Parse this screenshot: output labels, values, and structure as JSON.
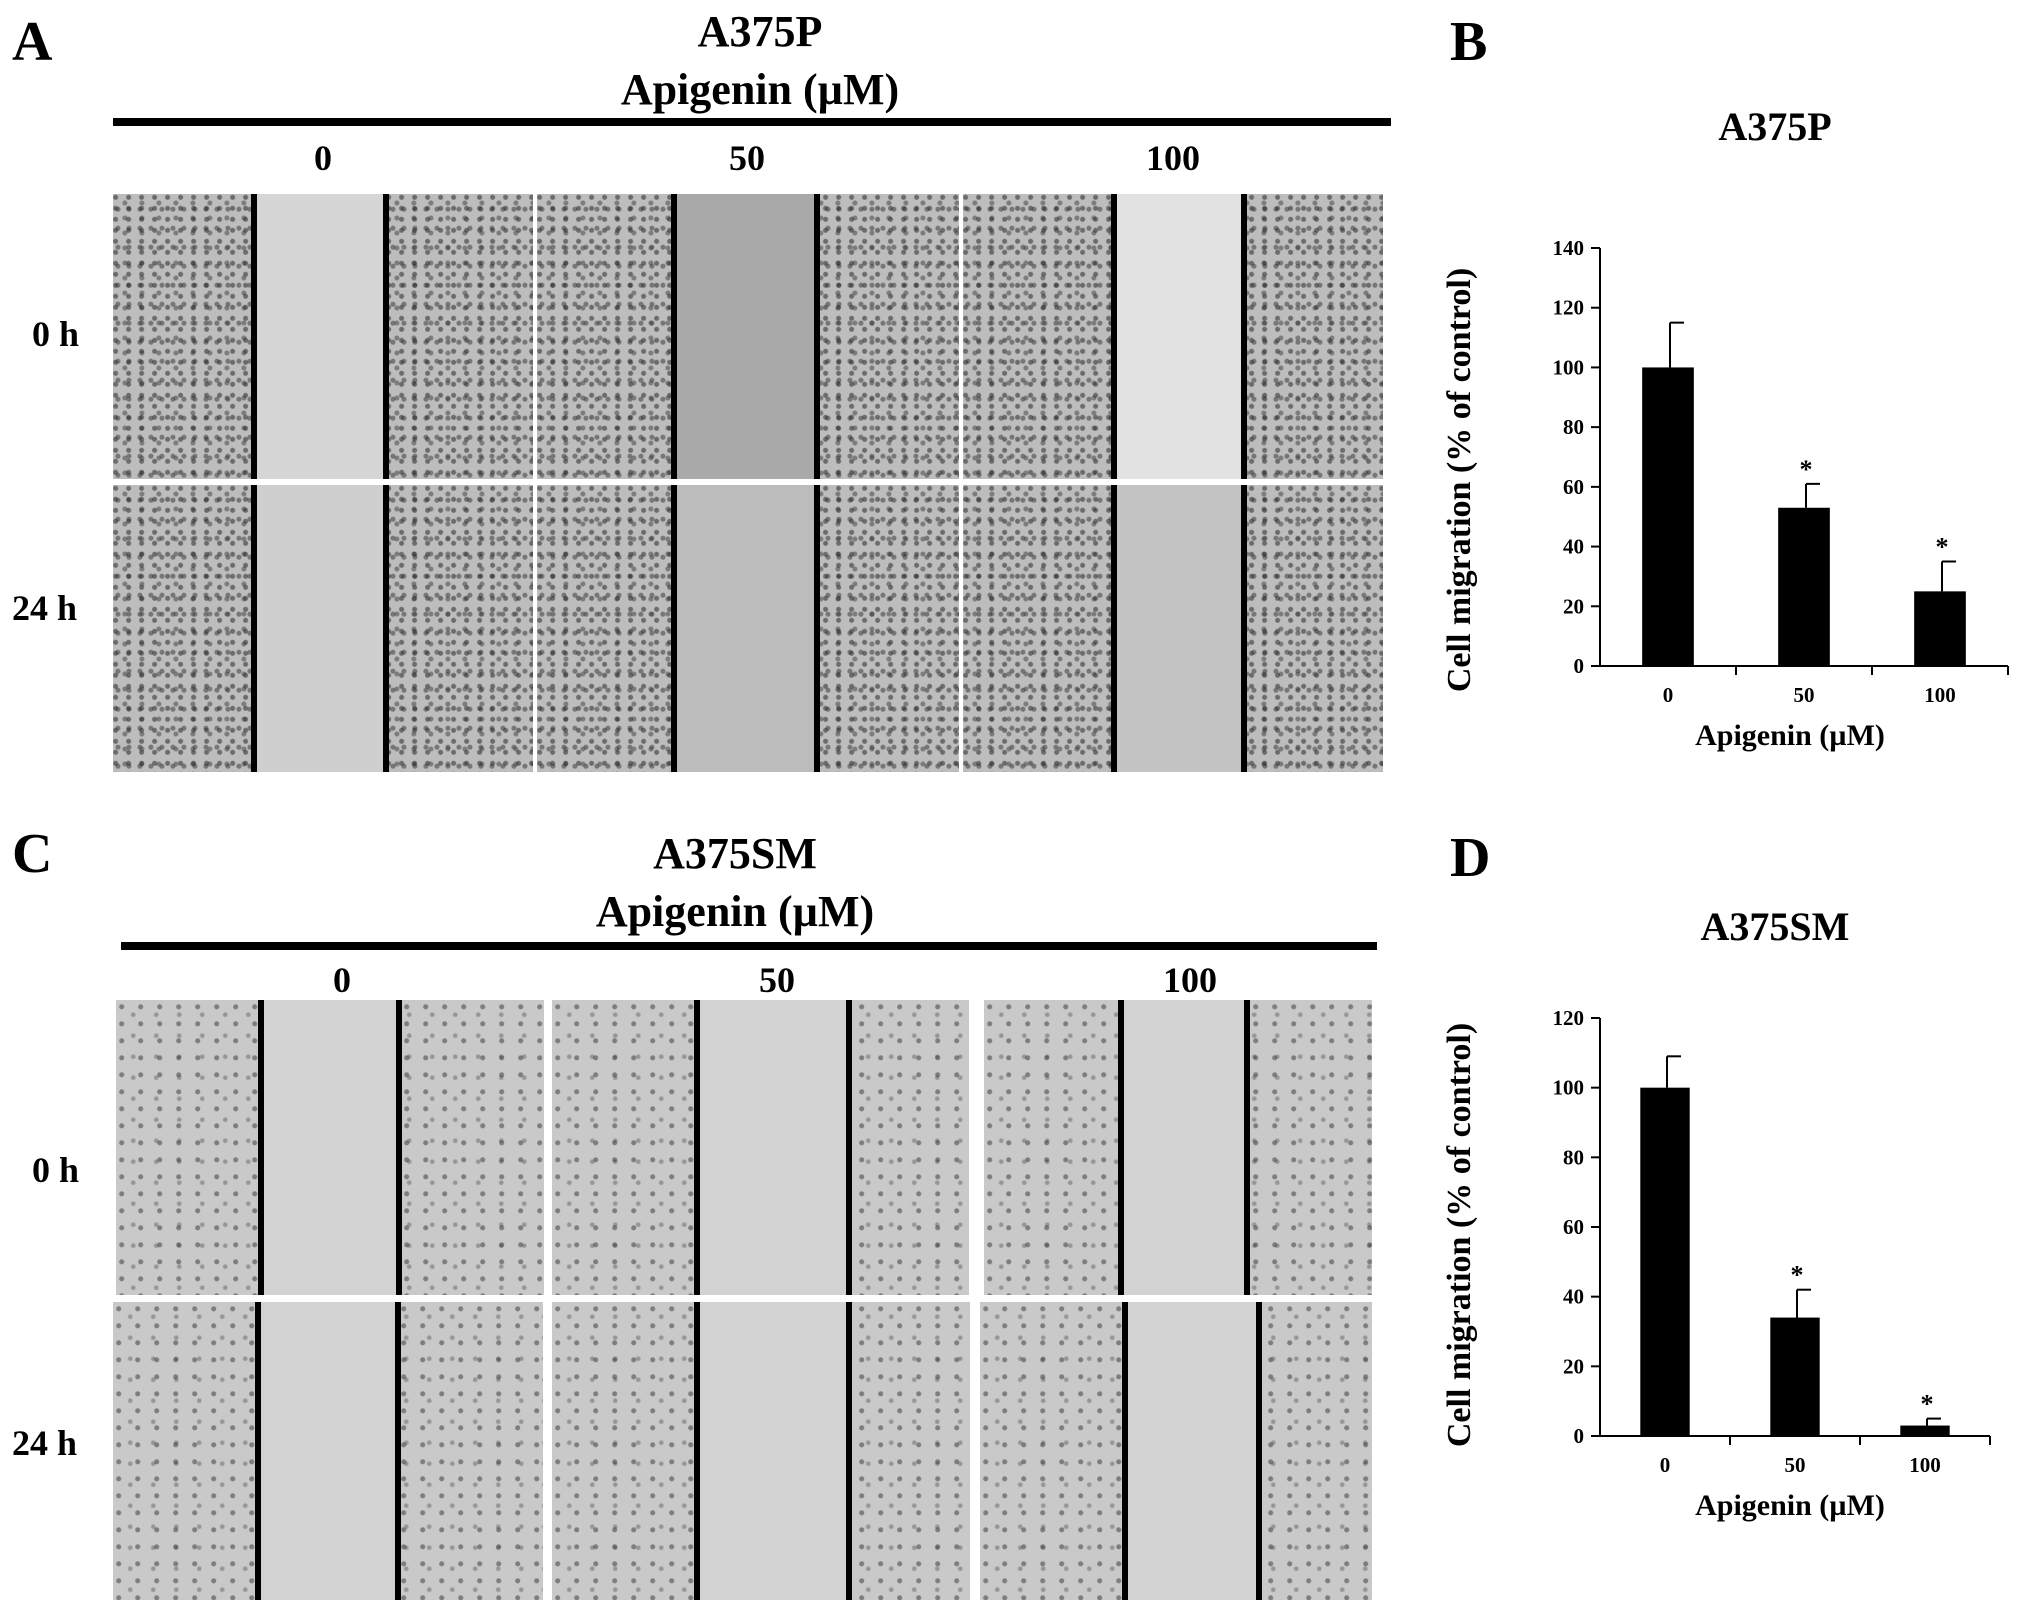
{
  "figure": {
    "panel_a": {
      "letter": "A",
      "cell_line": "A375P",
      "treatment_label": "Apigenin (µM)",
      "concentrations": [
        "0",
        "50",
        "100"
      ],
      "time_labels": [
        "0 h",
        "24 h"
      ]
    },
    "panel_c": {
      "letter": "C",
      "cell_line": "A375SM",
      "treatment_label": "Apigenin (µM)",
      "concentrations": [
        "0",
        "50",
        "100"
      ],
      "time_labels": [
        "0 h",
        "24 h"
      ]
    },
    "panel_b_letter": "B",
    "panel_d_letter": "D"
  },
  "chart_data": [
    {
      "panel": "B",
      "type": "bar",
      "title": "A375P",
      "xlabel": "Apigenin (µM)",
      "ylabel": "Cell migration (% of control)",
      "categories": [
        "0",
        "50",
        "100"
      ],
      "values": [
        100,
        53,
        25
      ],
      "errors": [
        15,
        8,
        10
      ],
      "significance": [
        "",
        "*",
        "*"
      ],
      "ylim": [
        0,
        140
      ],
      "yticks": [
        0,
        20,
        40,
        60,
        80,
        100,
        120,
        140
      ],
      "bar_color": "#000000"
    },
    {
      "panel": "D",
      "type": "bar",
      "title": "A375SM",
      "xlabel": "Apigenin (µM)",
      "ylabel": "Cell migration (% of control)",
      "categories": [
        "0",
        "50",
        "100"
      ],
      "values": [
        100,
        34,
        3
      ],
      "errors": [
        9,
        8,
        2
      ],
      "significance": [
        "",
        "*",
        "*"
      ],
      "ylim": [
        0,
        120
      ],
      "yticks": [
        0,
        20,
        40,
        60,
        80,
        100,
        120
      ],
      "bar_color": "#000000"
    }
  ]
}
